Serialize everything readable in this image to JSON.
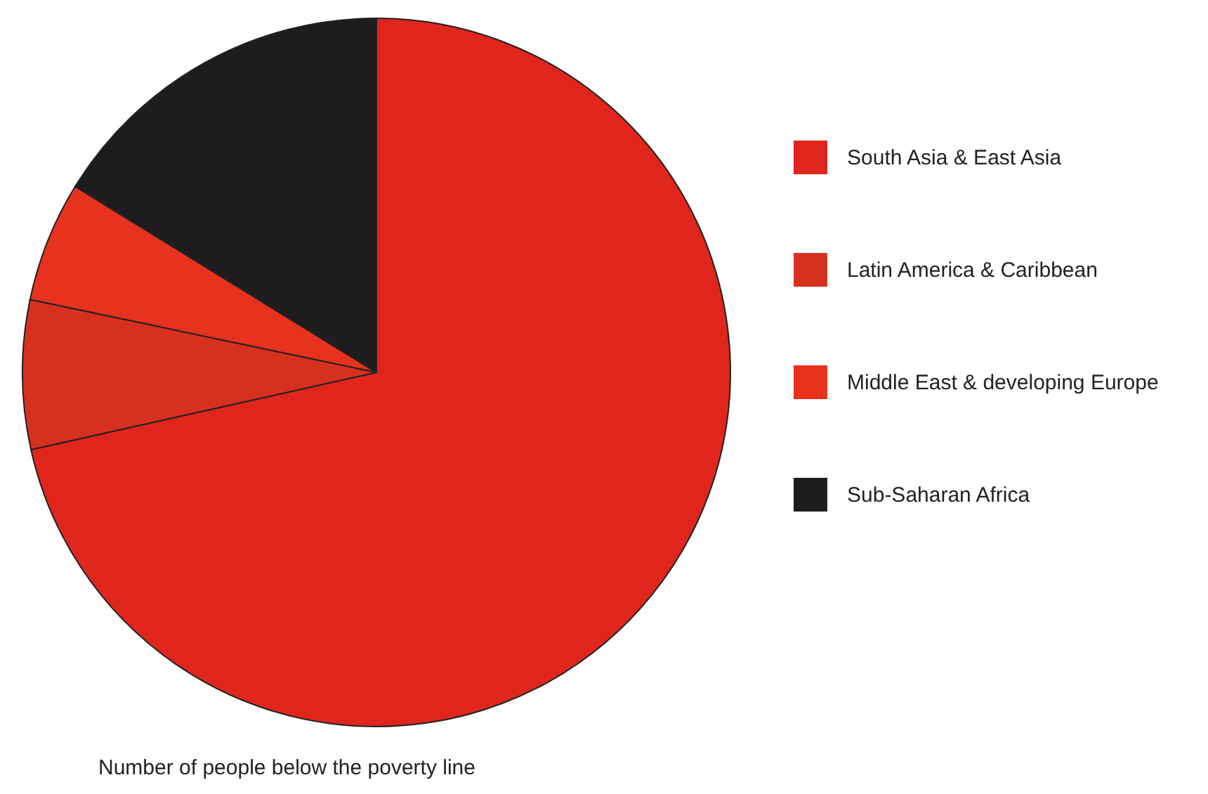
{
  "chart_data": {
    "type": "pie",
    "title": "Number of people below the poverty line",
    "categories": [
      "South Asia & East Asia",
      "Latin America & Caribbean",
      "Middle East & developing Europe",
      "Sub-Saharan Africa"
    ],
    "values": [
      71.5,
      6.8,
      5.5,
      16.2
    ],
    "colors": [
      "#e0261c",
      "#d8301f",
      "#e8321e",
      "#1e1c1f"
    ],
    "legend": "right"
  }
}
